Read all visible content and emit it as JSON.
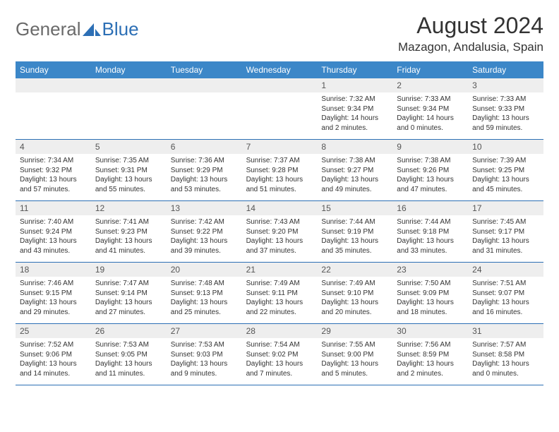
{
  "logo": {
    "general": "General",
    "blue": "Blue"
  },
  "title": "August 2024",
  "location": "Mazagon, Andalusia, Spain",
  "colors": {
    "header_bg": "#3c87c8",
    "header_text": "#ffffff",
    "day_number_bg": "#eeeeee",
    "week_border": "#2c6fb5",
    "logo_gray": "#6a6a6a",
    "logo_blue": "#2c6fb5"
  },
  "weekdays": [
    "Sunday",
    "Monday",
    "Tuesday",
    "Wednesday",
    "Thursday",
    "Friday",
    "Saturday"
  ],
  "weeks": [
    [
      {
        "empty": true
      },
      {
        "empty": true
      },
      {
        "empty": true
      },
      {
        "empty": true
      },
      {
        "day": "1",
        "sunrise": "Sunrise: 7:32 AM",
        "sunset": "Sunset: 9:34 PM",
        "daylight": "Daylight: 14 hours and 2 minutes."
      },
      {
        "day": "2",
        "sunrise": "Sunrise: 7:33 AM",
        "sunset": "Sunset: 9:34 PM",
        "daylight": "Daylight: 14 hours and 0 minutes."
      },
      {
        "day": "3",
        "sunrise": "Sunrise: 7:33 AM",
        "sunset": "Sunset: 9:33 PM",
        "daylight": "Daylight: 13 hours and 59 minutes."
      }
    ],
    [
      {
        "day": "4",
        "sunrise": "Sunrise: 7:34 AM",
        "sunset": "Sunset: 9:32 PM",
        "daylight": "Daylight: 13 hours and 57 minutes."
      },
      {
        "day": "5",
        "sunrise": "Sunrise: 7:35 AM",
        "sunset": "Sunset: 9:31 PM",
        "daylight": "Daylight: 13 hours and 55 minutes."
      },
      {
        "day": "6",
        "sunrise": "Sunrise: 7:36 AM",
        "sunset": "Sunset: 9:29 PM",
        "daylight": "Daylight: 13 hours and 53 minutes."
      },
      {
        "day": "7",
        "sunrise": "Sunrise: 7:37 AM",
        "sunset": "Sunset: 9:28 PM",
        "daylight": "Daylight: 13 hours and 51 minutes."
      },
      {
        "day": "8",
        "sunrise": "Sunrise: 7:38 AM",
        "sunset": "Sunset: 9:27 PM",
        "daylight": "Daylight: 13 hours and 49 minutes."
      },
      {
        "day": "9",
        "sunrise": "Sunrise: 7:38 AM",
        "sunset": "Sunset: 9:26 PM",
        "daylight": "Daylight: 13 hours and 47 minutes."
      },
      {
        "day": "10",
        "sunrise": "Sunrise: 7:39 AM",
        "sunset": "Sunset: 9:25 PM",
        "daylight": "Daylight: 13 hours and 45 minutes."
      }
    ],
    [
      {
        "day": "11",
        "sunrise": "Sunrise: 7:40 AM",
        "sunset": "Sunset: 9:24 PM",
        "daylight": "Daylight: 13 hours and 43 minutes."
      },
      {
        "day": "12",
        "sunrise": "Sunrise: 7:41 AM",
        "sunset": "Sunset: 9:23 PM",
        "daylight": "Daylight: 13 hours and 41 minutes."
      },
      {
        "day": "13",
        "sunrise": "Sunrise: 7:42 AM",
        "sunset": "Sunset: 9:22 PM",
        "daylight": "Daylight: 13 hours and 39 minutes."
      },
      {
        "day": "14",
        "sunrise": "Sunrise: 7:43 AM",
        "sunset": "Sunset: 9:20 PM",
        "daylight": "Daylight: 13 hours and 37 minutes."
      },
      {
        "day": "15",
        "sunrise": "Sunrise: 7:44 AM",
        "sunset": "Sunset: 9:19 PM",
        "daylight": "Daylight: 13 hours and 35 minutes."
      },
      {
        "day": "16",
        "sunrise": "Sunrise: 7:44 AM",
        "sunset": "Sunset: 9:18 PM",
        "daylight": "Daylight: 13 hours and 33 minutes."
      },
      {
        "day": "17",
        "sunrise": "Sunrise: 7:45 AM",
        "sunset": "Sunset: 9:17 PM",
        "daylight": "Daylight: 13 hours and 31 minutes."
      }
    ],
    [
      {
        "day": "18",
        "sunrise": "Sunrise: 7:46 AM",
        "sunset": "Sunset: 9:15 PM",
        "daylight": "Daylight: 13 hours and 29 minutes."
      },
      {
        "day": "19",
        "sunrise": "Sunrise: 7:47 AM",
        "sunset": "Sunset: 9:14 PM",
        "daylight": "Daylight: 13 hours and 27 minutes."
      },
      {
        "day": "20",
        "sunrise": "Sunrise: 7:48 AM",
        "sunset": "Sunset: 9:13 PM",
        "daylight": "Daylight: 13 hours and 25 minutes."
      },
      {
        "day": "21",
        "sunrise": "Sunrise: 7:49 AM",
        "sunset": "Sunset: 9:11 PM",
        "daylight": "Daylight: 13 hours and 22 minutes."
      },
      {
        "day": "22",
        "sunrise": "Sunrise: 7:49 AM",
        "sunset": "Sunset: 9:10 PM",
        "daylight": "Daylight: 13 hours and 20 minutes."
      },
      {
        "day": "23",
        "sunrise": "Sunrise: 7:50 AM",
        "sunset": "Sunset: 9:09 PM",
        "daylight": "Daylight: 13 hours and 18 minutes."
      },
      {
        "day": "24",
        "sunrise": "Sunrise: 7:51 AM",
        "sunset": "Sunset: 9:07 PM",
        "daylight": "Daylight: 13 hours and 16 minutes."
      }
    ],
    [
      {
        "day": "25",
        "sunrise": "Sunrise: 7:52 AM",
        "sunset": "Sunset: 9:06 PM",
        "daylight": "Daylight: 13 hours and 14 minutes."
      },
      {
        "day": "26",
        "sunrise": "Sunrise: 7:53 AM",
        "sunset": "Sunset: 9:05 PM",
        "daylight": "Daylight: 13 hours and 11 minutes."
      },
      {
        "day": "27",
        "sunrise": "Sunrise: 7:53 AM",
        "sunset": "Sunset: 9:03 PM",
        "daylight": "Daylight: 13 hours and 9 minutes."
      },
      {
        "day": "28",
        "sunrise": "Sunrise: 7:54 AM",
        "sunset": "Sunset: 9:02 PM",
        "daylight": "Daylight: 13 hours and 7 minutes."
      },
      {
        "day": "29",
        "sunrise": "Sunrise: 7:55 AM",
        "sunset": "Sunset: 9:00 PM",
        "daylight": "Daylight: 13 hours and 5 minutes."
      },
      {
        "day": "30",
        "sunrise": "Sunrise: 7:56 AM",
        "sunset": "Sunset: 8:59 PM",
        "daylight": "Daylight: 13 hours and 2 minutes."
      },
      {
        "day": "31",
        "sunrise": "Sunrise: 7:57 AM",
        "sunset": "Sunset: 8:58 PM",
        "daylight": "Daylight: 13 hours and 0 minutes."
      }
    ]
  ]
}
